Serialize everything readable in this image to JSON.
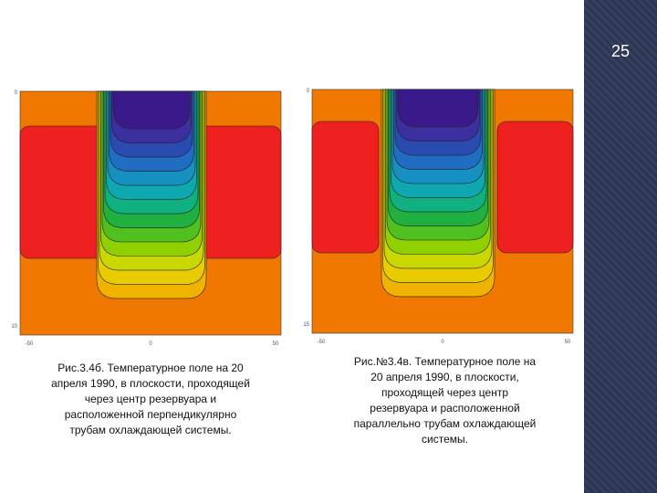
{
  "slide_number": "25",
  "figures": [
    {
      "x_ticks": [
        "-50",
        "0",
        "50"
      ],
      "y_ticks": [
        "0",
        "10"
      ],
      "caption": [
        "Рис.3.4б. Температурное поле на 20",
        "апреля 1990, в плоскости, проходящей",
        "через центр резервуара и",
        "расположенной перпендикулярно",
        "трубам охлаждающей системы."
      ]
    },
    {
      "x_ticks": [
        "-50",
        "0",
        "50"
      ],
      "y_ticks": [
        "0",
        "15"
      ],
      "caption": [
        "Рис.№3.4в. Температурное поле на",
        "20 апреля 1990, в плоскости,",
        "проходящей через центр",
        "резервуара и расположенной",
        "параллельно трубам охлаждающей",
        "системы."
      ]
    }
  ]
}
